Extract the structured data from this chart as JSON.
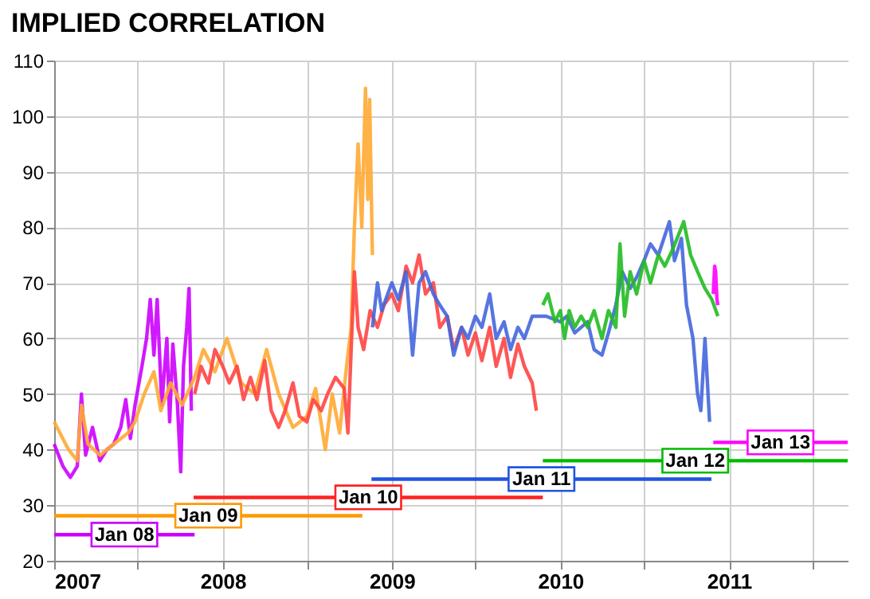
{
  "chart_data": {
    "type": "line",
    "title": "IMPLIED CORRELATION",
    "xlim": [
      "2007-01-01",
      "2011-09-15"
    ],
    "xticks": [
      {
        "value": "2007-01-01",
        "label": "2007"
      },
      {
        "value": "2007-07-01",
        "label": null
      },
      {
        "value": "2008-01-01",
        "label": "2008"
      },
      {
        "value": "2008-07-01",
        "label": null
      },
      {
        "value": "2009-01-01",
        "label": "2009"
      },
      {
        "value": "2009-07-01",
        "label": null
      },
      {
        "value": "2010-01-01",
        "label": "2010"
      },
      {
        "value": "2010-07-01",
        "label": null
      },
      {
        "value": "2011-01-01",
        "label": "2011"
      },
      {
        "value": "2011-07-01",
        "label": null
      }
    ],
    "ylim": [
      20,
      110
    ],
    "yticks": [
      20,
      30,
      40,
      50,
      60,
      70,
      80,
      90,
      100,
      110
    ],
    "grid": true,
    "series": [
      {
        "color": "#cc00ff",
        "x": [
          "2007-01-01",
          "2007-01-20",
          "2007-02-05",
          "2007-02-20",
          "2007-03-01",
          "2007-03-10",
          "2007-03-25",
          "2007-04-10",
          "2007-04-25",
          "2007-05-10",
          "2007-05-25",
          "2007-06-05",
          "2007-06-15",
          "2007-06-25",
          "2007-07-10",
          "2007-07-20",
          "2007-07-28",
          "2007-08-05",
          "2007-08-12",
          "2007-08-22",
          "2007-09-02",
          "2007-09-08",
          "2007-09-15",
          "2007-09-25",
          "2007-10-02",
          "2007-10-08",
          "2007-10-15",
          "2007-10-20",
          "2007-10-25"
        ],
        "values": [
          41,
          37,
          35,
          37,
          50,
          39,
          44,
          38,
          40,
          41,
          44,
          49,
          42,
          48,
          55,
          60,
          67,
          57,
          67,
          48,
          60,
          45,
          59,
          48,
          36,
          55,
          62,
          69,
          47
        ]
      },
      {
        "color": "#ffaa33",
        "x": [
          "2007-01-01",
          "2007-02-01",
          "2007-02-20",
          "2007-03-01",
          "2007-03-15",
          "2007-04-10",
          "2007-05-10",
          "2007-06-10",
          "2007-06-25",
          "2007-07-15",
          "2007-08-05",
          "2007-08-20",
          "2007-09-10",
          "2007-10-05",
          "2007-11-01",
          "2007-11-20",
          "2007-12-15",
          "2008-01-10",
          "2008-02-10",
          "2008-03-10",
          "2008-04-05",
          "2008-05-01",
          "2008-06-01",
          "2008-07-01",
          "2008-07-20",
          "2008-08-10",
          "2008-08-25",
          "2008-09-10",
          "2008-09-25",
          "2008-10-05",
          "2008-10-12",
          "2008-10-20",
          "2008-10-28",
          "2008-11-05",
          "2008-11-10",
          "2008-11-14",
          "2008-11-20"
        ],
        "values": [
          45,
          40,
          38,
          48,
          41,
          39,
          41,
          43,
          45,
          50,
          54,
          47,
          52,
          48,
          53,
          58,
          54,
          60,
          52,
          50,
          58,
          50,
          44,
          46,
          51,
          40,
          50,
          43,
          55,
          62,
          80,
          95,
          80,
          105,
          85,
          103,
          75
        ]
      },
      {
        "color": "#ff4444",
        "x": [
          "2007-11-01",
          "2007-11-15",
          "2007-12-01",
          "2007-12-15",
          "2008-01-01",
          "2008-01-15",
          "2008-02-01",
          "2008-02-15",
          "2008-03-01",
          "2008-03-15",
          "2008-04-01",
          "2008-04-15",
          "2008-05-01",
          "2008-05-15",
          "2008-06-01",
          "2008-06-15",
          "2008-07-01",
          "2008-07-15",
          "2008-08-01",
          "2008-08-15",
          "2008-09-01",
          "2008-09-20",
          "2008-09-28",
          "2008-10-05",
          "2008-10-12",
          "2008-10-20",
          "2008-11-01",
          "2008-11-15",
          "2008-12-01",
          "2008-12-15",
          "2009-01-01",
          "2009-01-15",
          "2009-02-01",
          "2009-02-15",
          "2009-03-01",
          "2009-03-15",
          "2009-04-01",
          "2009-04-15",
          "2009-05-01",
          "2009-05-15",
          "2009-06-01",
          "2009-06-15",
          "2009-07-01",
          "2009-07-15",
          "2009-08-01",
          "2009-08-15",
          "2009-09-01",
          "2009-09-15",
          "2009-10-01",
          "2009-10-15",
          "2009-11-01",
          "2009-11-10"
        ],
        "values": [
          50,
          55,
          52,
          58,
          55,
          52,
          55,
          49,
          53,
          49,
          56,
          47,
          44,
          47,
          52,
          46,
          45,
          49,
          47,
          50,
          53,
          51,
          43,
          58,
          72,
          62,
          58,
          65,
          62,
          66,
          68,
          65,
          73,
          70,
          75,
          68,
          70,
          62,
          64,
          58,
          62,
          57,
          61,
          56,
          62,
          55,
          60,
          53,
          59,
          55,
          52,
          47
        ]
      },
      {
        "color": "#4466dd",
        "x": [
          "2008-11-20",
          "2008-12-01",
          "2008-12-10",
          "2009-01-01",
          "2009-01-15",
          "2009-02-01",
          "2009-02-15",
          "2009-03-01",
          "2009-03-15",
          "2009-04-01",
          "2009-04-15",
          "2009-05-01",
          "2009-05-15",
          "2009-06-01",
          "2009-06-15",
          "2009-07-01",
          "2009-07-15",
          "2009-08-01",
          "2009-08-15",
          "2009-09-01",
          "2009-09-15",
          "2009-10-01",
          "2009-10-15",
          "2009-11-01",
          "2009-11-15",
          "2009-12-01",
          "2010-01-01",
          "2010-01-15",
          "2010-02-01",
          "2010-02-15",
          "2010-03-01",
          "2010-03-15",
          "2010-04-01",
          "2010-04-15",
          "2010-05-01",
          "2010-05-15",
          "2010-06-01",
          "2010-06-15",
          "2010-07-01",
          "2010-07-15",
          "2010-08-01",
          "2010-08-25",
          "2010-09-05",
          "2010-09-20",
          "2010-10-01",
          "2010-10-15",
          "2010-10-25",
          "2010-11-01",
          "2010-11-10",
          "2010-11-20"
        ],
        "values": [
          62,
          70,
          65,
          70,
          67,
          72,
          57,
          70,
          72,
          68,
          66,
          64,
          57,
          62,
          60,
          64,
          62,
          68,
          60,
          63,
          58,
          62,
          60,
          64,
          64,
          64,
          63,
          64,
          61,
          62,
          63,
          58,
          57,
          61,
          66,
          72,
          69,
          71,
          74,
          77,
          75,
          81,
          74,
          78,
          66,
          60,
          50,
          47,
          60,
          45
        ]
      },
      {
        "color": "#22bb22",
        "x": [
          "2009-11-24",
          "2009-12-05",
          "2009-12-20",
          "2010-01-01",
          "2010-01-10",
          "2010-01-20",
          "2010-02-01",
          "2010-02-15",
          "2010-03-01",
          "2010-03-15",
          "2010-04-01",
          "2010-04-15",
          "2010-05-01",
          "2010-05-10",
          "2010-05-20",
          "2010-06-01",
          "2010-06-15",
          "2010-07-01",
          "2010-07-15",
          "2010-08-01",
          "2010-08-15",
          "2010-09-01",
          "2010-09-25",
          "2010-10-10",
          "2010-10-25",
          "2010-11-10",
          "2010-11-25",
          "2010-12-08"
        ],
        "values": [
          66,
          68,
          63,
          65,
          60,
          65,
          62,
          64,
          62,
          65,
          60,
          65,
          62,
          77,
          64,
          72,
          68,
          74,
          70,
          75,
          73,
          76,
          81,
          75,
          72,
          69,
          67,
          64
        ]
      },
      {
        "color": "#ff00ff",
        "x": [
          "2010-11-28",
          "2010-12-01",
          "2010-12-03",
          "2010-12-06",
          "2010-12-08"
        ],
        "values": [
          68,
          73,
          72,
          67,
          66
        ]
      },
      {
        "name": "Jan 08",
        "color": "#cc00ff",
        "x": [
          "2007-01-01",
          "2007-11-01"
        ],
        "values": [
          24.7,
          24.7
        ]
      },
      {
        "name": "Jan 09",
        "color": "#ff9900",
        "x": [
          "2007-01-01",
          "2008-10-29"
        ],
        "values": [
          28.1,
          28.1
        ]
      },
      {
        "name": "Jan 10",
        "color": "#ff2222",
        "x": [
          "2007-10-30",
          "2009-11-24"
        ],
        "values": [
          31.4,
          31.4
        ]
      },
      {
        "name": "Jan 11",
        "color": "#2255dd",
        "x": [
          "2008-11-18",
          "2010-11-24"
        ],
        "values": [
          34.7,
          34.7
        ]
      },
      {
        "name": "Jan 12",
        "color": "#00bb00",
        "x": [
          "2009-11-24",
          "2011-09-15"
        ],
        "values": [
          38,
          38
        ]
      },
      {
        "name": "Jan 13",
        "color": "#ff00ff",
        "x": [
          "2010-11-28",
          "2011-09-15"
        ],
        "values": [
          41.3,
          41.3
        ]
      }
    ]
  }
}
